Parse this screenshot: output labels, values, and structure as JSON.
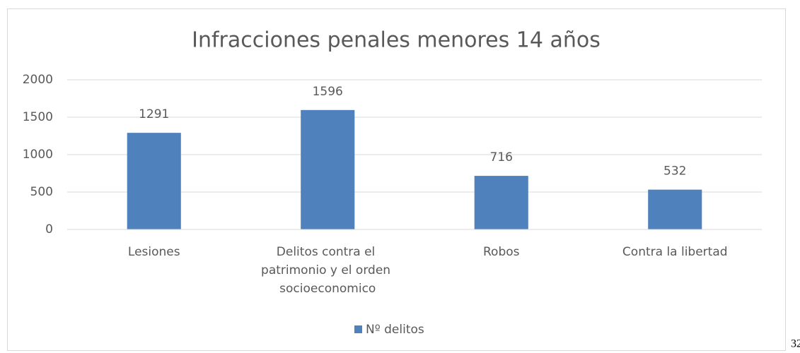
{
  "chart_data": {
    "type": "bar",
    "title": "Infracciones penales menores 14 años",
    "categories": [
      "Lesiones",
      "Delitos contra el patrimonio y el orden socioeconomico",
      "Robos",
      "Contra la libertad"
    ],
    "series": [
      {
        "name": "Nº delitos",
        "color": "#4f81bd",
        "values": [
          1291,
          1596,
          716,
          532
        ]
      }
    ],
    "ylim": [
      0,
      2000
    ],
    "yticks": [
      0,
      500,
      1000,
      1500,
      2000
    ],
    "grid": true,
    "legend": "bottom"
  },
  "page_number": "32"
}
